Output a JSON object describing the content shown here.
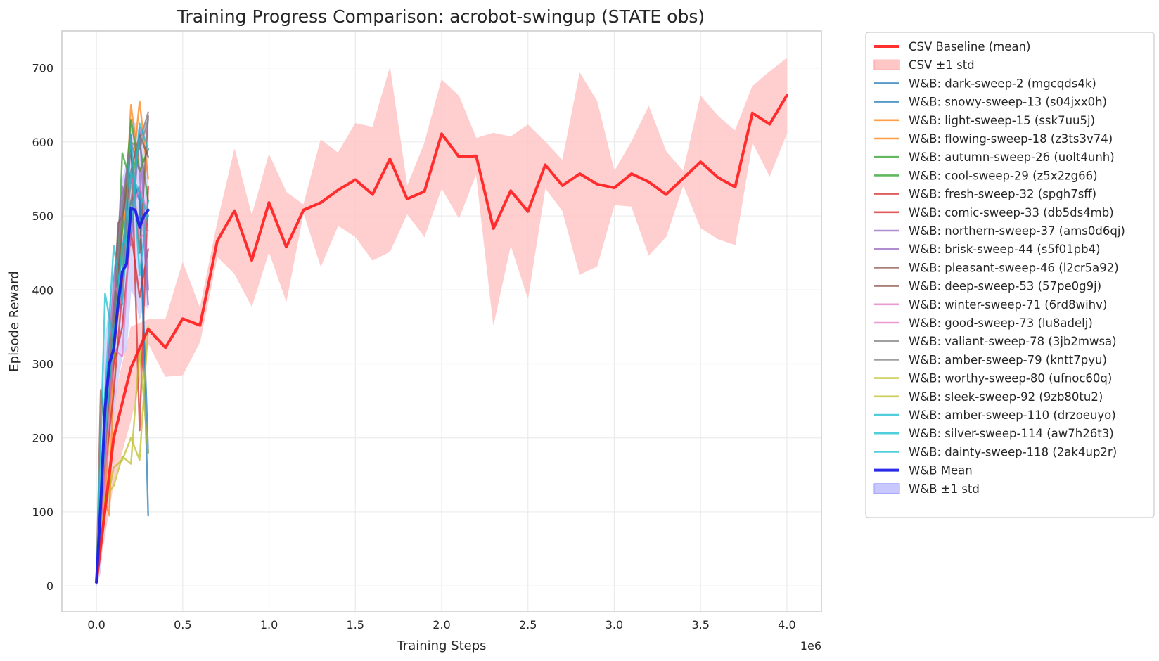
{
  "chart_data": {
    "type": "line",
    "title": "Training Progress Comparison: acrobot-swingup (STATE obs)",
    "xlabel": "Training Steps",
    "ylabel": "Episode Reward",
    "x_scale_label": "1e6",
    "x_scale_factor": 1000000,
    "xlim": [
      -0.2,
      4.2
    ],
    "ylim": [
      -35,
      750
    ],
    "xticks": [
      0.0,
      0.5,
      1.0,
      1.5,
      2.0,
      2.5,
      3.0,
      3.5,
      4.0
    ],
    "xtick_labels": [
      "0.0",
      "0.5",
      "1.0",
      "1.5",
      "2.0",
      "2.5",
      "3.0",
      "3.5",
      "4.0"
    ],
    "yticks": [
      0,
      100,
      200,
      300,
      400,
      500,
      600,
      700
    ],
    "ytick_labels": [
      "0",
      "100",
      "200",
      "300",
      "400",
      "500",
      "600",
      "700"
    ],
    "grid": true,
    "legend_position": "outside-right",
    "csv_baseline": {
      "name": "CSV Baseline (mean)",
      "band_name": "CSV ±1 std",
      "color": "#ff2020",
      "band_color": "#ffc6c6",
      "x": [
        0.0,
        0.1,
        0.2,
        0.3,
        0.4,
        0.5,
        0.6,
        0.7,
        0.8,
        0.9,
        1.0,
        1.1,
        1.2,
        1.3,
        1.4,
        1.5,
        1.6,
        1.7,
        1.8,
        1.9,
        2.0,
        2.1,
        2.2,
        2.3,
        2.4,
        2.5,
        2.6,
        2.7,
        2.8,
        2.9,
        3.0,
        3.1,
        3.2,
        3.3,
        3.4,
        3.5,
        3.6,
        3.7,
        3.8,
        3.9,
        4.0
      ],
      "mean": [
        5,
        200,
        295,
        347,
        322,
        361,
        352,
        466,
        507,
        440,
        518,
        458,
        508,
        518,
        535,
        549,
        529,
        577,
        523,
        533,
        611,
        580,
        581,
        483,
        534,
        506,
        569,
        541,
        557,
        543,
        538,
        557,
        546,
        529,
        551,
        573,
        552,
        539,
        639,
        624,
        663
      ],
      "upper": [
        15,
        250,
        350,
        360,
        360,
        437,
        375,
        490,
        590,
        500,
        583,
        532,
        515,
        603,
        585,
        625,
        620,
        700,
        540,
        598,
        684,
        662,
        605,
        612,
        607,
        623,
        600,
        575,
        693,
        655,
        560,
        600,
        648,
        587,
        560,
        662,
        635,
        615,
        675,
        695,
        713
      ],
      "lower": [
        0,
        140,
        225,
        328,
        283,
        285,
        330,
        445,
        422,
        378,
        452,
        385,
        505,
        432,
        487,
        472,
        440,
        452,
        503,
        472,
        538,
        497,
        557,
        353,
        461,
        389,
        538,
        507,
        421,
        432,
        515,
        513,
        447,
        472,
        542,
        484,
        469,
        461,
        600,
        554,
        612
      ]
    },
    "wandb_mean": {
      "name": "W&B Mean",
      "band_name": "W&B ±1 std",
      "color": "#1f1fe8",
      "band_color": "#c8c8ff",
      "x": [
        0.0,
        0.025,
        0.05,
        0.075,
        0.1,
        0.125,
        0.15,
        0.175,
        0.2,
        0.225,
        0.25,
        0.275,
        0.3
      ],
      "mean": [
        5,
        110,
        240,
        300,
        320,
        380,
        425,
        435,
        510,
        508,
        485,
        500,
        508
      ],
      "upper": [
        15,
        230,
        330,
        380,
        420,
        470,
        550,
        570,
        630,
        625,
        610,
        620,
        640
      ],
      "lower": [
        0,
        20,
        130,
        200,
        230,
        280,
        310,
        320,
        400,
        390,
        360,
        380,
        375
      ]
    },
    "series": [
      {
        "name": "W&B: dark-sweep-2 (mgcqds4k)",
        "color": "#1f77b4",
        "x": [
          0.0,
          0.05,
          0.1,
          0.15,
          0.2,
          0.25,
          0.3
        ],
        "values": [
          5,
          210,
          330,
          410,
          520,
          540,
          95
        ]
      },
      {
        "name": "W&B: snowy-sweep-13 (s04jxx0h)",
        "color": "#1f77b4",
        "x": [
          0.0,
          0.05,
          0.1,
          0.15,
          0.2,
          0.25,
          0.3
        ],
        "values": [
          5,
          260,
          380,
          450,
          560,
          520,
          180
        ]
      },
      {
        "name": "W&B: light-sweep-15 (ssk7uu5j)",
        "color": "#ff7f0e",
        "x": [
          0.0,
          0.05,
          0.1,
          0.15,
          0.2,
          0.25,
          0.3
        ],
        "values": [
          5,
          120,
          310,
          420,
          650,
          560,
          590
        ]
      },
      {
        "name": "W&B: flowing-sweep-18 (z3ts3v74)",
        "color": "#ff7f0e",
        "x": [
          0.0,
          0.025,
          0.05,
          0.075,
          0.1,
          0.15,
          0.2,
          0.25,
          0.3
        ],
        "values": [
          5,
          60,
          115,
          95,
          300,
          480,
          540,
          655,
          550
        ]
      },
      {
        "name": "W&B: autumn-sweep-26 (uolt4unh)",
        "color": "#2ca02c",
        "x": [
          0.0,
          0.05,
          0.1,
          0.15,
          0.2,
          0.25,
          0.3
        ],
        "values": [
          5,
          200,
          350,
          480,
          630,
          560,
          590
        ]
      },
      {
        "name": "W&B: cool-sweep-29 (z5x2zg66)",
        "color": "#2ca02c",
        "x": [
          0.0,
          0.05,
          0.1,
          0.15,
          0.2,
          0.25,
          0.3
        ],
        "values": [
          5,
          180,
          310,
          585,
          545,
          600,
          520
        ]
      },
      {
        "name": "W&B: fresh-sweep-32 (spgh7sff)",
        "color": "#d62728",
        "x": [
          0.0,
          0.05,
          0.1,
          0.15,
          0.2,
          0.25,
          0.3
        ],
        "values": [
          5,
          200,
          300,
          350,
          480,
          390,
          455
        ]
      },
      {
        "name": "W&B: comic-sweep-33 (db5ds4mb)",
        "color": "#d62728",
        "x": [
          0.0,
          0.05,
          0.1,
          0.15,
          0.2,
          0.25,
          0.3
        ],
        "values": [
          5,
          160,
          260,
          400,
          610,
          210,
          540
        ]
      },
      {
        "name": "W&B: northern-sweep-37 (ams0d6qj)",
        "color": "#9467bd",
        "x": [
          0.0,
          0.05,
          0.1,
          0.15,
          0.2,
          0.25,
          0.3
        ],
        "values": [
          5,
          240,
          410,
          540,
          460,
          620,
          400
        ]
      },
      {
        "name": "W&B: brisk-sweep-44 (s5f01pb4)",
        "color": "#9467bd",
        "x": [
          0.0,
          0.05,
          0.1,
          0.15,
          0.2,
          0.25,
          0.3
        ],
        "values": [
          5,
          200,
          350,
          520,
          600,
          560,
          380
        ]
      },
      {
        "name": "W&B: pleasant-sweep-46 (l2cr5a92)",
        "color": "#8c564b",
        "x": [
          0.0,
          0.05,
          0.1,
          0.15,
          0.2,
          0.25,
          0.3
        ],
        "values": [
          5,
          180,
          330,
          500,
          560,
          610,
          580
        ]
      },
      {
        "name": "W&B: deep-sweep-53 (57pe0g9j)",
        "color": "#8c564b",
        "x": [
          0.0,
          0.025,
          0.05,
          0.1,
          0.125,
          0.15,
          0.2,
          0.25,
          0.3
        ],
        "values": [
          5,
          265,
          210,
          350,
          490,
          500,
          590,
          450,
          635
        ]
      },
      {
        "name": "W&B: winter-sweep-71 (6rd8wihv)",
        "color": "#e377c2",
        "x": [
          0.0,
          0.05,
          0.1,
          0.15,
          0.2,
          0.25,
          0.3
        ],
        "values": [
          5,
          190,
          410,
          380,
          560,
          470,
          480
        ]
      },
      {
        "name": "W&B: good-sweep-73 (lu8adelj)",
        "color": "#e377c2",
        "x": [
          0.0,
          0.05,
          0.1,
          0.15,
          0.2,
          0.25,
          0.3
        ],
        "values": [
          5,
          150,
          320,
          310,
          500,
          540,
          500
        ]
      },
      {
        "name": "W&B: valiant-sweep-78 (3jb2mwsa)",
        "color": "#7f7f7f",
        "x": [
          0.0,
          0.05,
          0.1,
          0.15,
          0.2,
          0.25,
          0.3
        ],
        "values": [
          5,
          220,
          380,
          510,
          600,
          590,
          630
        ]
      },
      {
        "name": "W&B: amber-sweep-79 (kntt7pyu)",
        "color": "#7f7f7f",
        "x": [
          0.0,
          0.05,
          0.1,
          0.15,
          0.2,
          0.25,
          0.3
        ],
        "values": [
          5,
          250,
          360,
          450,
          520,
          600,
          640
        ]
      },
      {
        "name": "W&B: worthy-sweep-80 (ufnoc60q)",
        "color": "#bcbd22",
        "x": [
          0.0,
          0.05,
          0.1,
          0.15,
          0.2,
          0.25,
          0.3
        ],
        "values": [
          5,
          120,
          135,
          175,
          165,
          320,
          180
        ]
      },
      {
        "name": "W&B: sleek-sweep-92 (9zb80tu2)",
        "color": "#bcbd22",
        "x": [
          0.0,
          0.05,
          0.1,
          0.15,
          0.2,
          0.25,
          0.3
        ],
        "values": [
          5,
          100,
          160,
          170,
          200,
          170,
          350
        ]
      },
      {
        "name": "W&B: amber-sweep-110 (drzoeuyo)",
        "color": "#17becf",
        "x": [
          0.0,
          0.05,
          0.1,
          0.15,
          0.2,
          0.25,
          0.3
        ],
        "values": [
          5,
          395,
          330,
          460,
          480,
          625,
          590
        ]
      },
      {
        "name": "W&B: silver-sweep-114 (aw7h26t3)",
        "color": "#17becf",
        "x": [
          0.0,
          0.05,
          0.1,
          0.15,
          0.2,
          0.25,
          0.3
        ],
        "values": [
          5,
          260,
          460,
          380,
          560,
          530,
          500
        ]
      },
      {
        "name": "W&B: dainty-sweep-118 (2ak4up2r)",
        "color": "#17becf",
        "x": [
          0.0,
          0.05,
          0.1,
          0.15,
          0.2,
          0.25,
          0.3
        ],
        "values": [
          5,
          200,
          340,
          420,
          610,
          420,
          520
        ]
      }
    ]
  }
}
